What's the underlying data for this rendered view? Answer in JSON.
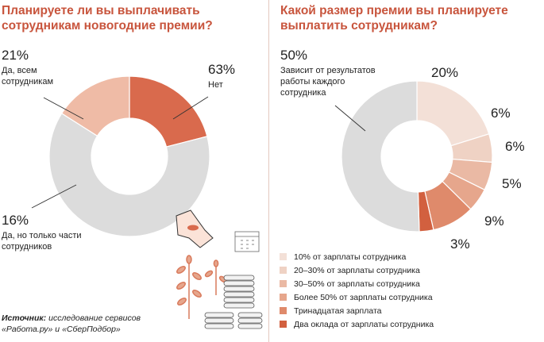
{
  "left": {
    "title": "Планируете ли вы выплачивать сотрудникам новогодние премии?",
    "labels": [
      {
        "pct": "21%",
        "text": "Да, всем сотрудникам"
      },
      {
        "pct": "63%",
        "text": "Нет"
      },
      {
        "pct": "16%",
        "text": "Да, но только части сотрудников"
      }
    ]
  },
  "right": {
    "title": "Какой размер премии вы планируете выплатить сотрудникам?",
    "labels": [
      {
        "pct": "50%",
        "text": "Зависит от результатов работы каждого сотрудника"
      },
      {
        "pct": "20%"
      },
      {
        "pct": "6%"
      },
      {
        "pct": "6%"
      },
      {
        "pct": "5%"
      },
      {
        "pct": "9%"
      },
      {
        "pct": "3%"
      }
    ],
    "legend": [
      {
        "label": "10% от зарплаты сотрудника",
        "color": "#f3e0d7"
      },
      {
        "label": "20–30% от зарплаты сотрудника",
        "color": "#efd2c4"
      },
      {
        "label": "30–50% от зарплаты сотрудника",
        "color": "#eab9a4"
      },
      {
        "label": "Более 50% от зарплаты сотрудника",
        "color": "#e6a68c"
      },
      {
        "label": "Тринадцатая зарплата",
        "color": "#df8a6b"
      },
      {
        "label": "Два оклада от зарплаты сотрудника",
        "color": "#d2603f"
      }
    ]
  },
  "source": {
    "label": "Источник:",
    "text": "исследование сервисов «Работа.ру» и «СберПодбор»"
  },
  "chart_data": [
    {
      "type": "pie",
      "title": "Планируете ли вы выплачивать сотрудникам новогодние премии?",
      "categories": [
        "Да, всем сотрудникам",
        "Нет",
        "Да, но только части сотрудников"
      ],
      "values": [
        21,
        63,
        16
      ],
      "colors": [
        "#d96a4d",
        "#dcdcdc",
        "#efbba6"
      ]
    },
    {
      "type": "pie",
      "title": "Какой размер премии вы планируете выплатить сотрудникам?",
      "categories": [
        "10% от зарплаты сотрудника",
        "20–30% от зарплаты сотрудника",
        "30–50% от зарплаты сотрудника",
        "Более 50% от зарплаты сотрудника",
        "Тринадцатая зарплата",
        "Два оклада от зарплаты сотрудника",
        "Зависит от результатов работы каждого сотрудника"
      ],
      "values": [
        20,
        6,
        6,
        5,
        9,
        3,
        50
      ],
      "colors": [
        "#f3e0d7",
        "#efd2c4",
        "#eab9a4",
        "#e6a68c",
        "#df8a6b",
        "#d2603f",
        "#dcdcdc"
      ]
    }
  ]
}
